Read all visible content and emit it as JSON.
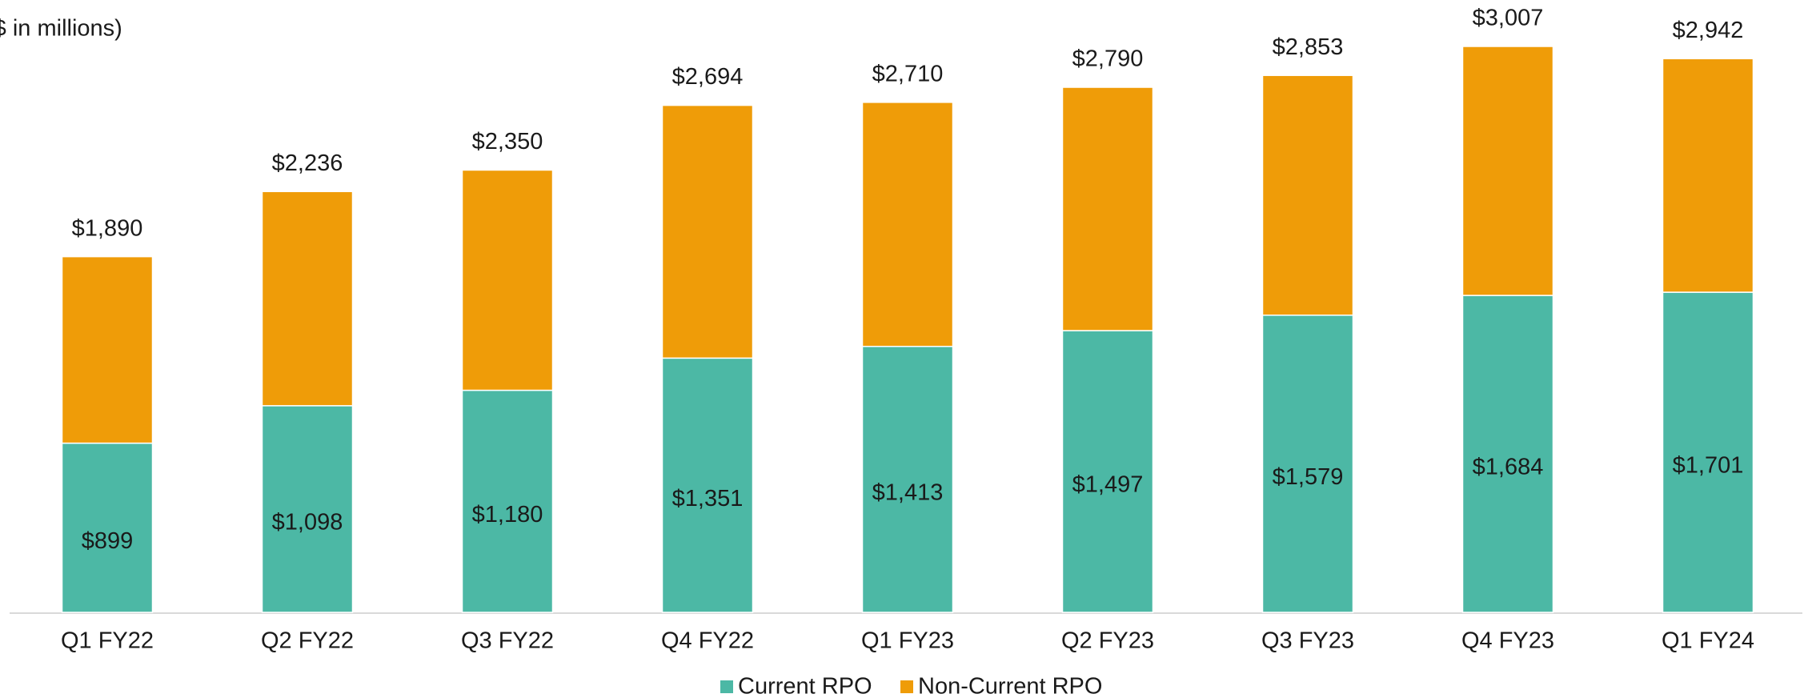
{
  "chart_data": {
    "type": "stacked_bar",
    "subtitle": "($ in millions)",
    "categories": [
      "Q1 FY22",
      "Q2 FY22",
      "Q3 FY22",
      "Q4 FY22",
      "Q1 FY23",
      "Q2 FY23",
      "Q3 FY23",
      "Q4 FY23",
      "Q1 FY24"
    ],
    "series": [
      {
        "name": "Current RPO",
        "color": "#4cb8a5",
        "values": [
          899,
          1098,
          1180,
          1351,
          1413,
          1497,
          1579,
          1684,
          1701
        ],
        "value_labels": [
          "$899",
          "$1,098",
          "$1,180",
          "$1,351",
          "$1,413",
          "$1,497",
          "$1,579",
          "$1,684",
          "$1,701"
        ]
      },
      {
        "name": "Non-Current RPO",
        "color": "#ef9c08",
        "values": [
          991,
          1138,
          1170,
          1343,
          1297,
          1293,
          1274,
          1323,
          1241
        ]
      }
    ],
    "totals": {
      "values": [
        1890,
        2236,
        2350,
        2694,
        2710,
        2790,
        2853,
        3007,
        2942
      ],
      "value_labels": [
        "$1,890",
        "$2,236",
        "$2,350",
        "$2,694",
        "$2,710",
        "$2,790",
        "$2,853",
        "$3,007",
        "$2,942"
      ]
    }
  }
}
